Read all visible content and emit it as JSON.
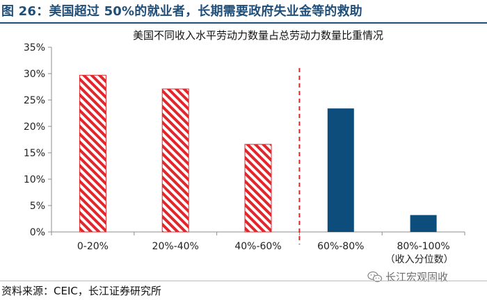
{
  "figure": {
    "title": "图 26：美国超过 50%的就业者，长期需要政府失业金等的救助",
    "source": "资料来源：CEIC，长江证券研究所",
    "watermark": "长江宏观固收"
  },
  "colors": {
    "title": "#1f4e79",
    "hatch_red": "#e2262b",
    "bar_blue": "#0d4d7c",
    "divider_red": "#e2262b"
  },
  "chart_data": {
    "type": "bar",
    "title": "美国不同收入水平劳动力数量占总劳动力数量比重情况",
    "xlabel": "（收入分位数）",
    "ylabel": "",
    "ylim": [
      0,
      35
    ],
    "yticks": [
      "0%",
      "5%",
      "10%",
      "15%",
      "20%",
      "25%",
      "30%",
      "35%"
    ],
    "ytick_values": [
      0,
      5,
      10,
      15,
      20,
      25,
      30,
      35
    ],
    "categories": [
      "0-20%",
      "20%-40%",
      "40%-60%",
      "60%-80%",
      "80%-100%"
    ],
    "values": [
      29.7,
      27.1,
      16.6,
      23.4,
      3.2
    ],
    "styles": [
      "hatched-red",
      "hatched-red",
      "hatched-red",
      "solid-blue",
      "solid-blue"
    ],
    "divider_between": [
      2,
      3
    ]
  }
}
